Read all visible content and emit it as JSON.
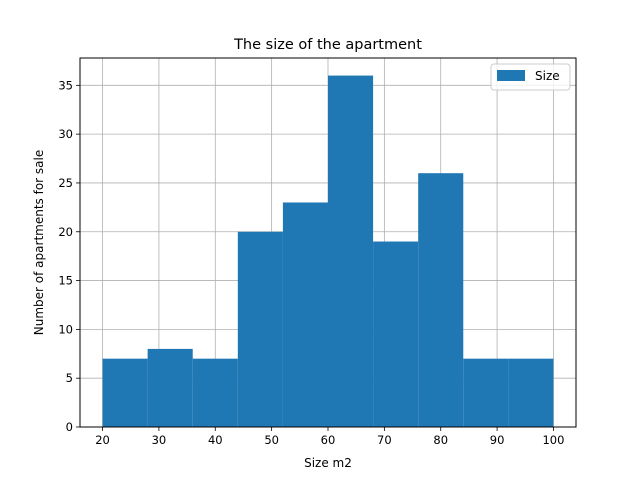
{
  "chart_data": {
    "type": "bar",
    "title": "The size of the apartment",
    "xlabel": "Size m2",
    "ylabel": "Number of apartments for sale",
    "xlim": [
      16,
      104
    ],
    "ylim": [
      0,
      37.8
    ],
    "grid": true,
    "legend": {
      "position": "top-right",
      "entries": [
        "Size"
      ]
    },
    "bar_color": "#1f77b4",
    "bin_edges": [
      20,
      28,
      36,
      44,
      52,
      60,
      68,
      76,
      84,
      92,
      100
    ],
    "values": [
      7,
      8,
      7,
      20,
      23,
      36,
      19,
      26,
      7,
      7
    ],
    "x_ticks": [
      20,
      30,
      40,
      50,
      60,
      70,
      80,
      90,
      100
    ],
    "y_ticks": [
      0,
      5,
      10,
      15,
      20,
      25,
      30,
      35
    ]
  }
}
